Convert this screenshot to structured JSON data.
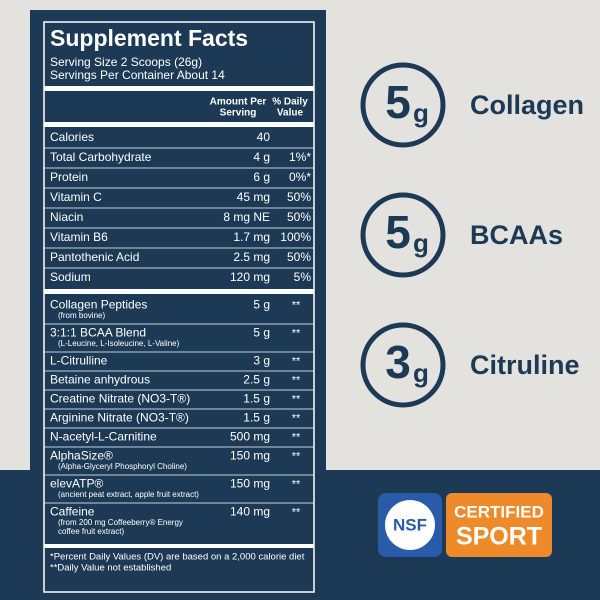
{
  "panel": {
    "title": "Supplement Facts",
    "serving_size": "Serving Size 2 Scoops (26g)",
    "servings_per_container": "Servings Per Container About 14",
    "header_amount": [
      "Amount Per",
      "Serving"
    ],
    "header_dv": [
      "% Daily",
      "Value"
    ],
    "nutrients": [
      {
        "name": "Calories",
        "amount": "40"
      },
      {
        "name": "Total Carbohydrate",
        "amount": "4 g",
        "dv": "1%*"
      },
      {
        "name": "Protein",
        "amount": "6 g",
        "dv": "0%*"
      },
      {
        "name": "Vitamin C",
        "amount": "45 mg",
        "dv": "50%"
      },
      {
        "name": "Niacin",
        "amount": "8 mg NE",
        "dv": "50%"
      },
      {
        "name": "Vitamin B6",
        "amount": "1.7 mg",
        "dv": "100%"
      },
      {
        "name": "Pantothenic Acid",
        "amount": "2.5 mg",
        "dv": "50%"
      },
      {
        "name": "Sodium",
        "amount": "120 mg",
        "dv": "5%"
      }
    ],
    "ingredients": [
      {
        "name": "Collagen Peptides",
        "notes": [
          "(from bovine)"
        ],
        "amount": "5 g",
        "dv": "**"
      },
      {
        "name": "3:1:1 BCAA Blend",
        "notes": [
          "(L-Leucine, L-Isoleucine, L-Valine)"
        ],
        "amount": "5 g",
        "dv": "**"
      },
      {
        "name": "L-Citrulline",
        "amount": "3 g",
        "dv": "**"
      },
      {
        "name": "Betaine anhydrous",
        "amount": "2.5 g",
        "dv": "**"
      },
      {
        "name": "Creatine Nitrate (NO3-T®)",
        "amount": "1.5 g",
        "dv": "**"
      },
      {
        "name": "Arginine Nitrate (NO3-T®)",
        "amount": "1.5 g",
        "dv": "**"
      },
      {
        "name": "N-acetyl-L-Carnitine",
        "amount": "500 mg",
        "dv": "**"
      },
      {
        "name": "AlphaSize®",
        "notes": [
          "(Alpha-Glyceryl Phosphoryl Choline)"
        ],
        "amount": "150 mg",
        "dv": "**"
      },
      {
        "name": "elevATP®",
        "notes": [
          "(ancient peat extract, apple fruit extract)"
        ],
        "amount": "150 mg",
        "dv": "**"
      },
      {
        "name": "Caffeine",
        "notes": [
          "(from 200 mg Coffeeberry® Energy",
          "coffee fruit extract)"
        ],
        "amount": "140 mg",
        "dv": "**"
      }
    ],
    "footnotes": [
      "*Percent Daily Values (DV) are based on a 2,000 calorie diet",
      "**Daily Value not established"
    ]
  },
  "highlights": [
    {
      "number": "5",
      "unit": "g",
      "label": "Collagen"
    },
    {
      "number": "5",
      "unit": "g",
      "label": "BCAAs"
    },
    {
      "number": "3",
      "unit": "g",
      "label": "Citruline"
    }
  ],
  "badge": {
    "mark": "NSF",
    "line1": "CERTIFIED",
    "line2": "SPORT"
  }
}
